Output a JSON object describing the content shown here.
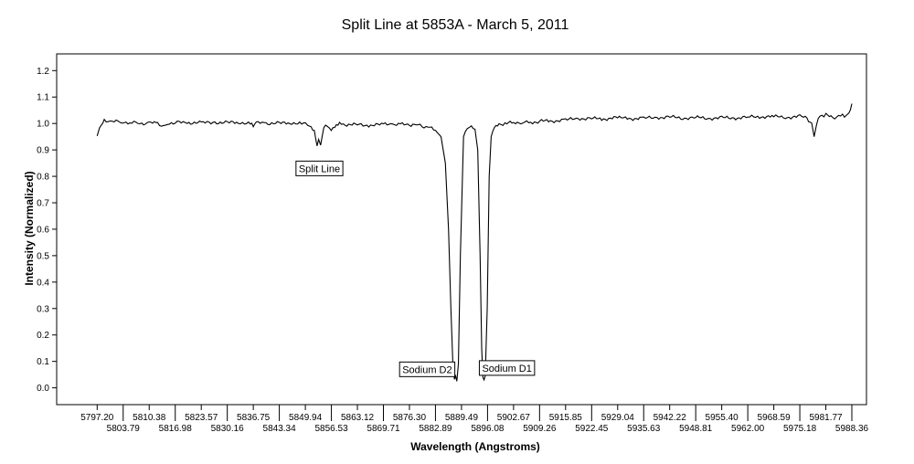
{
  "chart_data": {
    "type": "line",
    "title": "Split Line at 5853A  - March 5, 2011",
    "xlabel": "Wavelength (Angstroms)",
    "ylabel": "Intensity (Normalized)",
    "xlim": [
      5797.2,
      5988.36
    ],
    "ylim": [
      0.0,
      1.2
    ],
    "y_ticks": [
      "0.0",
      "0.1",
      "0.2",
      "0.3",
      "0.4",
      "0.5",
      "0.6",
      "0.7",
      "0.8",
      "0.9",
      "1.0",
      "1.1",
      "1.2"
    ],
    "x_ticks_upper": [
      "5797.20",
      "5810.38",
      "5823.57",
      "5836.75",
      "5849.94",
      "5863.12",
      "5876.30",
      "5889.49",
      "5902.67",
      "5915.85",
      "5929.04",
      "5942.22",
      "5955.40",
      "5968.59",
      "5981.77"
    ],
    "x_ticks_lower": [
      "5803.79",
      "5816.98",
      "5830.16",
      "5843.34",
      "5856.53",
      "5869.71",
      "5882.89",
      "5896.08",
      "5909.26",
      "5922.45",
      "5935.63",
      "5948.81",
      "5962.00",
      "5975.18",
      "5988.36"
    ],
    "grid": false,
    "legend": "none",
    "line_color": "#000000",
    "series": [
      {
        "x": [
          5797.2,
          5797.8,
          5799.0,
          5801.0,
          5803.5,
          5806.0,
          5808.0,
          5810.4,
          5812.5,
          5814.0,
          5815.0,
          5817.0,
          5820.0,
          5823.6,
          5827.0,
          5830.2,
          5833.0,
          5836.0,
          5836.75,
          5837.5,
          5840.0,
          5843.3,
          5846.0,
          5849.0,
          5851.0,
          5852.2,
          5852.9,
          5853.3,
          5853.8,
          5854.6,
          5855.5,
          5856.5,
          5857.8,
          5858.6,
          5860.0,
          5863.1,
          5866.0,
          5869.7,
          5872.0,
          5874.5,
          5876.3,
          5878.0,
          5880.0,
          5881.5,
          5882.9,
          5884.3,
          5885.4,
          5886.2,
          5886.8,
          5887.3,
          5887.7,
          5888.0,
          5888.3,
          5888.7,
          5889.2,
          5890.0,
          5891.0,
          5892.0,
          5892.9,
          5893.6,
          5894.2,
          5894.6,
          5894.9,
          5895.2,
          5895.5,
          5896.0,
          5896.5,
          5897.0,
          5897.8,
          5899.0,
          5900.5,
          5902.7,
          5905.0,
          5907.5,
          5909.3,
          5912.0,
          5915.8,
          5919.0,
          5922.4,
          5925.0,
          5929.0,
          5932.0,
          5935.6,
          5939.0,
          5942.2,
          5945.5,
          5948.8,
          5952.0,
          5955.4,
          5958.5,
          5962.0,
          5965.0,
          5968.6,
          5972.0,
          5975.2,
          5977.0,
          5978.2,
          5978.8,
          5979.4,
          5980.3,
          5981.8,
          5983.5,
          5985.0,
          5986.5,
          5987.6,
          5988.0,
          5988.36
        ],
        "y": [
          0.953,
          0.98,
          1.012,
          1.008,
          1.005,
          1.004,
          1.0,
          1.002,
          1.001,
          0.99,
          1.0,
          1.004,
          1.003,
          1.002,
          1.004,
          1.003,
          1.004,
          1.0,
          0.992,
          1.002,
          1.001,
          1.0,
          1.003,
          0.999,
          0.995,
          0.97,
          0.915,
          0.94,
          0.918,
          0.985,
          0.995,
          0.97,
          0.995,
          0.998,
          0.996,
          0.995,
          0.993,
          0.996,
          0.998,
          0.996,
          0.995,
          0.995,
          0.99,
          0.984,
          0.974,
          0.95,
          0.85,
          0.6,
          0.3,
          0.09,
          0.032,
          0.045,
          0.025,
          0.09,
          0.5,
          0.95,
          0.982,
          0.985,
          0.978,
          0.9,
          0.5,
          0.15,
          0.04,
          0.03,
          0.045,
          0.3,
          0.8,
          0.95,
          0.985,
          0.995,
          1.0,
          1.003,
          1.005,
          1.002,
          1.01,
          1.008,
          1.014,
          1.018,
          1.02,
          1.016,
          1.022,
          1.018,
          1.02,
          1.022,
          1.025,
          1.02,
          1.023,
          1.019,
          1.022,
          1.02,
          1.024,
          1.025,
          1.026,
          1.023,
          1.027,
          1.02,
          1.0,
          0.95,
          0.995,
          1.03,
          1.032,
          1.022,
          1.028,
          1.03,
          1.04,
          1.055,
          1.075
        ]
      }
    ],
    "annotations": [
      {
        "text": "Split Line",
        "x": 5853.5,
        "y": 0.83
      },
      {
        "text": "Sodium D2",
        "x": 5880.8,
        "y": 0.07
      },
      {
        "text": "Sodium D1",
        "x": 5901.0,
        "y": 0.075
      }
    ]
  }
}
